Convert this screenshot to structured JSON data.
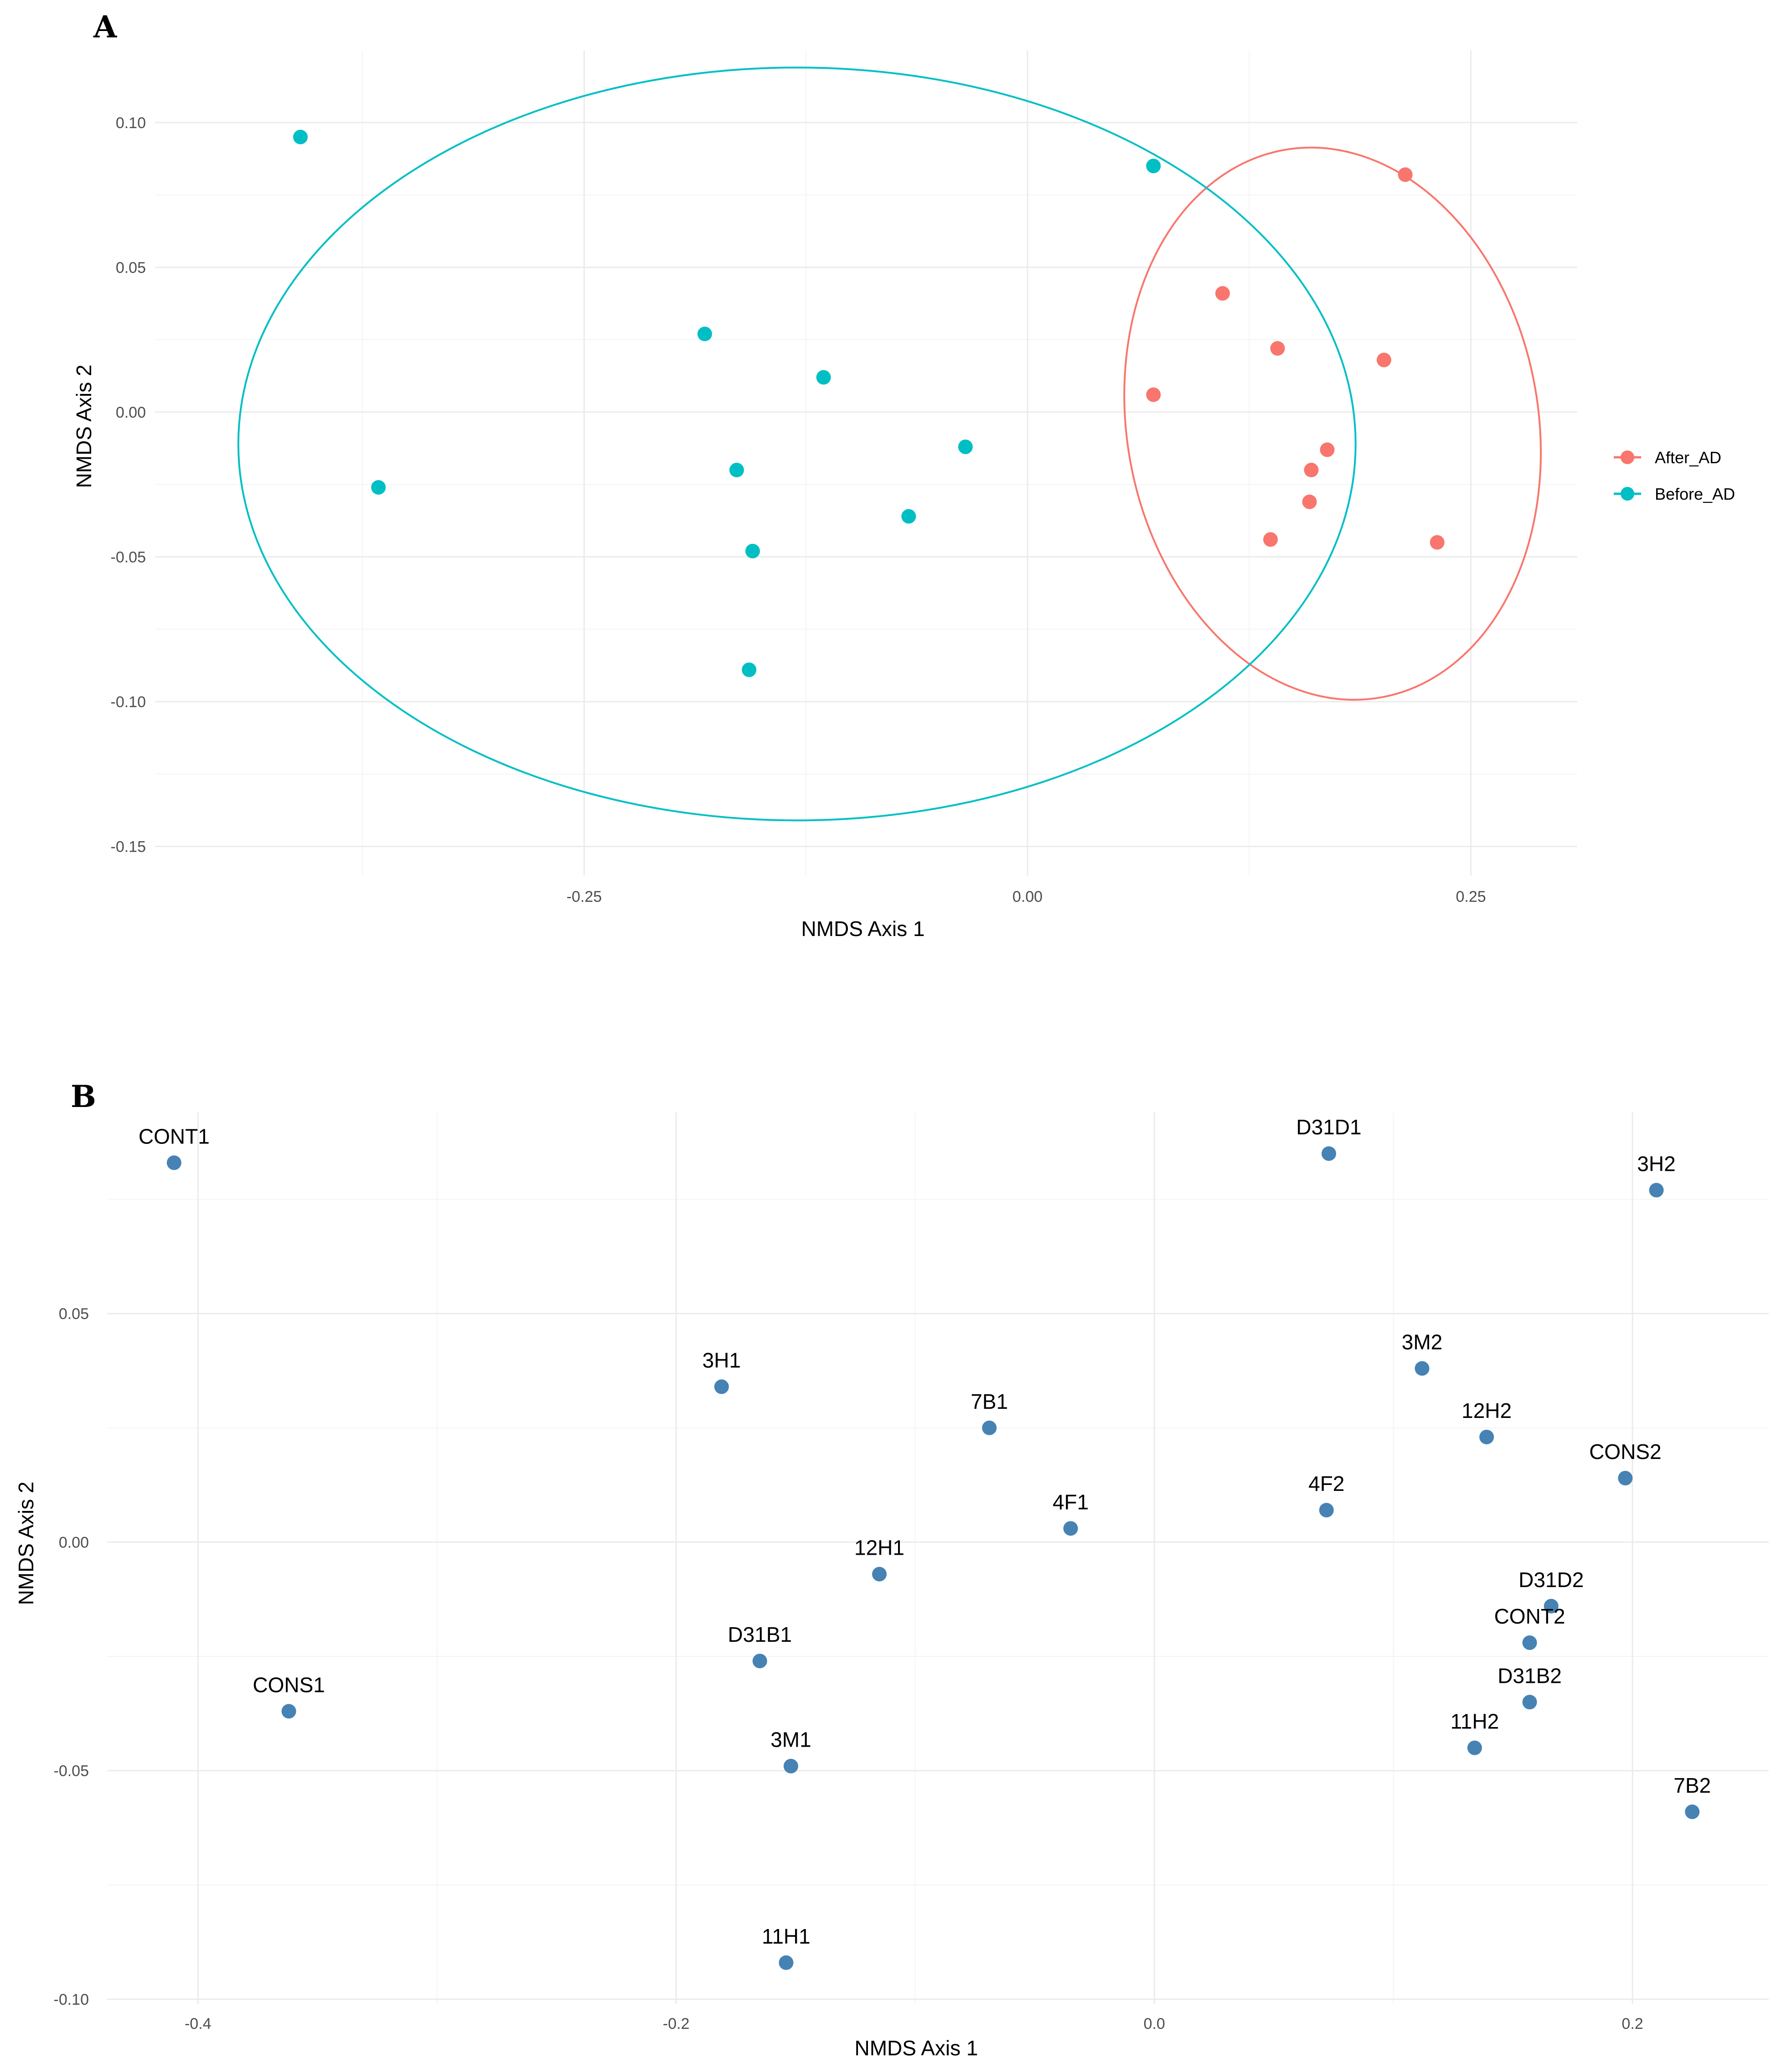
{
  "chart_data": [
    {
      "id": "A",
      "panel_label": "A",
      "type": "scatter",
      "xlabel": "NMDS Axis 1",
      "ylabel": "NMDS Axis 2",
      "xlim": [
        -0.492,
        0.31
      ],
      "ylim": [
        -0.16,
        0.125
      ],
      "x_ticks": [
        -0.25,
        0.0,
        0.25
      ],
      "x_tick_labels": [
        "-0.25",
        "0.00",
        "0.25"
      ],
      "y_ticks": [
        -0.15,
        -0.1,
        -0.05,
        0.0,
        0.05,
        0.1
      ],
      "y_tick_labels": [
        "-0.15",
        "-0.10",
        "-0.05",
        "0.00",
        "0.05",
        "0.10"
      ],
      "grid": true,
      "legend": {
        "position": "right",
        "entries": [
          "After_AD",
          "Before_AD"
        ]
      },
      "series": [
        {
          "name": "After_AD",
          "color": "#f8766d",
          "points": [
            {
              "x": 0.213,
              "y": 0.082
            },
            {
              "x": 0.11,
              "y": 0.041
            },
            {
              "x": 0.141,
              "y": 0.022
            },
            {
              "x": 0.201,
              "y": 0.018
            },
            {
              "x": 0.071,
              "y": 0.006
            },
            {
              "x": 0.169,
              "y": -0.013
            },
            {
              "x": 0.16,
              "y": -0.02
            },
            {
              "x": 0.159,
              "y": -0.031
            },
            {
              "x": 0.137,
              "y": -0.044
            },
            {
              "x": 0.231,
              "y": -0.045
            }
          ],
          "ellipse": {
            "cx": 0.172,
            "cy": -0.004,
            "rx": 0.116,
            "ry": 0.096,
            "rotation_deg": -10
          }
        },
        {
          "name": "Before_AD",
          "color": "#00bfc4",
          "points": [
            {
              "x": -0.41,
              "y": 0.095
            },
            {
              "x": 0.071,
              "y": 0.085
            },
            {
              "x": -0.182,
              "y": 0.027
            },
            {
              "x": -0.115,
              "y": 0.012
            },
            {
              "x": -0.035,
              "y": -0.012
            },
            {
              "x": -0.164,
              "y": -0.02
            },
            {
              "x": -0.366,
              "y": -0.026
            },
            {
              "x": -0.067,
              "y": -0.036
            },
            {
              "x": -0.155,
              "y": -0.048
            },
            {
              "x": -0.157,
              "y": -0.089
            }
          ],
          "ellipse": {
            "cx": -0.13,
            "cy": -0.011,
            "rx": 0.315,
            "ry": 0.13,
            "rotation_deg": 0
          }
        }
      ]
    },
    {
      "id": "B",
      "panel_label": "B",
      "type": "scatter",
      "xlabel": "NMDS Axis 1",
      "ylabel": "NMDS Axis 2",
      "xlim": [
        -0.438,
        0.257
      ],
      "ylim": [
        -0.101,
        0.094
      ],
      "x_ticks": [
        -0.4,
        -0.2,
        0.0,
        0.2
      ],
      "x_tick_labels": [
        "-0.4",
        "-0.2",
        "0.0",
        "0.2"
      ],
      "y_ticks": [
        -0.1,
        -0.05,
        0.0,
        0.05
      ],
      "y_tick_labels": [
        "-0.10",
        "-0.05",
        "0.00",
        "0.05"
      ],
      "grid": true,
      "color": "#4682b4",
      "points": [
        {
          "label": "CONT1",
          "x": -0.41,
          "y": 0.083
        },
        {
          "label": "D31D1",
          "x": 0.073,
          "y": 0.085
        },
        {
          "label": "3H2",
          "x": 0.21,
          "y": 0.077
        },
        {
          "label": "3M2",
          "x": 0.112,
          "y": 0.038
        },
        {
          "label": "3H1",
          "x": -0.181,
          "y": 0.034
        },
        {
          "label": "7B1",
          "x": -0.069,
          "y": 0.025
        },
        {
          "label": "12H2",
          "x": 0.139,
          "y": 0.023
        },
        {
          "label": "CONS2",
          "x": 0.197,
          "y": 0.014
        },
        {
          "label": "4F2",
          "x": 0.072,
          "y": 0.007
        },
        {
          "label": "4F1",
          "x": -0.035,
          "y": 0.003
        },
        {
          "label": "12H1",
          "x": -0.115,
          "y": -0.007
        },
        {
          "label": "D31D2",
          "x": 0.166,
          "y": -0.014
        },
        {
          "label": "CONT2",
          "x": 0.157,
          "y": -0.022
        },
        {
          "label": "D31B1",
          "x": -0.165,
          "y": -0.026
        },
        {
          "label": "D31B2",
          "x": 0.157,
          "y": -0.035
        },
        {
          "label": "CONS1",
          "x": -0.362,
          "y": -0.037
        },
        {
          "label": "11H2",
          "x": 0.134,
          "y": -0.045
        },
        {
          "label": "3M1",
          "x": -0.152,
          "y": -0.049
        },
        {
          "label": "7B2",
          "x": 0.225,
          "y": -0.059
        },
        {
          "label": "11H1",
          "x": -0.154,
          "y": -0.092
        }
      ]
    }
  ]
}
